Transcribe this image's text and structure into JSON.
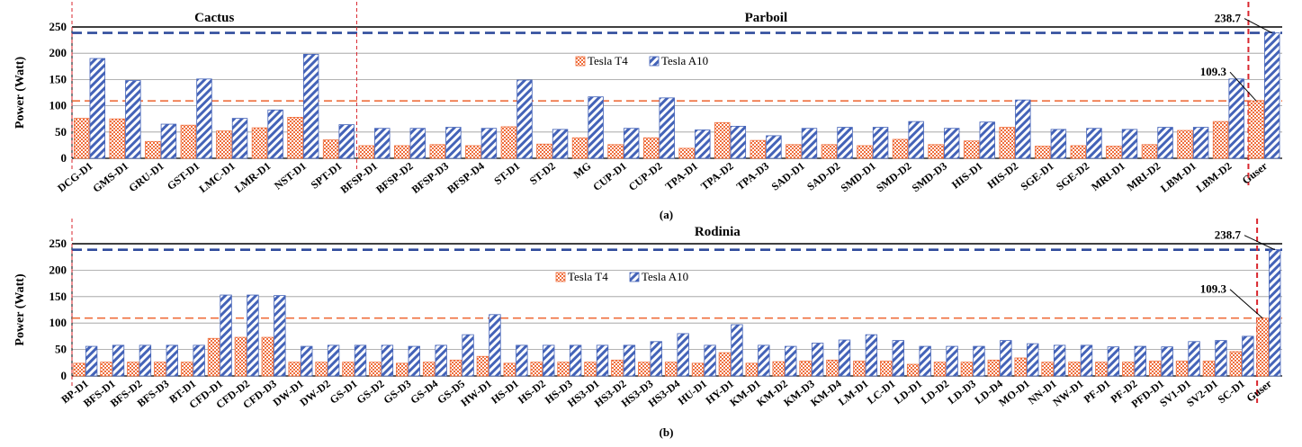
{
  "colors": {
    "t4": "#ef6e3c",
    "a10": "#4463b8",
    "t4_ref": "#ef6e3c",
    "a10_ref": "#2f4b9c",
    "separator": "#d9262e"
  },
  "chart_data": [
    {
      "type": "bar",
      "panel_label": "(a)",
      "ylabel": "Power (Watt)",
      "ylim": [
        0,
        250
      ],
      "yticks": [
        0,
        50,
        100,
        150,
        200,
        250
      ],
      "grid": true,
      "legend_placement": "top-center",
      "groups": [
        {
          "label": "Cactus",
          "start": 0,
          "end": 8
        },
        {
          "label": "Parboil",
          "start": 8,
          "end": 31
        }
      ],
      "categories": [
        "DCG-D1",
        "GMS-D1",
        "GRU-D1",
        "GST-D1",
        "LMC-D1",
        "LMR-D1",
        "NST-D1",
        "SPT-D1",
        "BFSP-D1",
        "BFSP-D2",
        "BFSP-D3",
        "BFSP-D4",
        "ST-D1",
        "ST-D2",
        "MG",
        "CUP-D1",
        "CUP-D2",
        "TPA-D1",
        "TPA-D2",
        "TPA-D3",
        "SAD-D1",
        "SAD-D2",
        "SMD-D1",
        "SMD-D2",
        "SMD-D3",
        "HIS-D1",
        "HIS-D2",
        "SGE-D1",
        "SGE-D2",
        "MRI-D1",
        "MRI-D2",
        "LBM-D1",
        "LBM-D2",
        "Guser"
      ],
      "series": [
        {
          "name": "Tesla T4",
          "values": [
            76,
            75,
            32,
            63,
            52,
            58,
            78,
            35,
            24,
            24,
            26,
            24,
            60,
            27,
            39,
            26,
            39,
            19,
            68,
            34,
            26,
            26,
            24,
            36,
            26,
            33,
            59,
            23,
            24,
            23,
            26,
            53,
            70,
            109.3
          ]
        },
        {
          "name": "Tesla A10",
          "values": [
            190,
            148,
            65,
            151,
            76,
            92,
            198,
            64,
            57,
            57,
            59,
            57,
            149,
            55,
            117,
            57,
            115,
            54,
            61,
            43,
            57,
            59,
            59,
            70,
            57,
            69,
            111,
            55,
            57,
            55,
            59,
            59,
            151,
            238.7
          ]
        }
      ],
      "reference_lines": [
        {
          "series": "Tesla A10",
          "value": 238.7,
          "label": "238.7"
        },
        {
          "series": "Tesla T4",
          "value": 109.3,
          "label": "109.3"
        }
      ]
    },
    {
      "type": "bar",
      "panel_label": "(b)",
      "ylabel": "Power (Watt)",
      "ylim": [
        0,
        250
      ],
      "yticks": [
        0,
        50,
        100,
        150,
        200,
        250
      ],
      "grid": true,
      "legend_placement": "top-center",
      "groups": [
        {
          "label": "Rodinia",
          "start": 0,
          "end": 48
        }
      ],
      "categories": [
        "BP-D1",
        "BFS-D1",
        "BFS-D2",
        "BFS-D3",
        "BT-D1",
        "CFD-D1",
        "CFD-D2",
        "CFD-D3",
        "DW-D1",
        "DW-D2",
        "GS-D1",
        "GS-D2",
        "GS-D3",
        "GS-D4",
        "GS-D5",
        "HW-D1",
        "HS-D1",
        "HS-D2",
        "HS-D3",
        "HS3-D1",
        "HS3-D2",
        "HS3-D3",
        "HS3-D4",
        "HU-D1",
        "HY-D1",
        "KM-D1",
        "KM-D2",
        "KM-D3",
        "KM-D4",
        "LM-D1",
        "LC-D1",
        "LD-D1",
        "LD-D2",
        "LD-D3",
        "LD-D4",
        "MO-D1",
        "NN-D1",
        "NW-D1",
        "PF-D1",
        "PF-D2",
        "PFD-D1",
        "SV1-D1",
        "SV2-D1",
        "SC-D1",
        "Guser"
      ],
      "series": [
        {
          "name": "Tesla T4",
          "values": [
            24,
            26,
            26,
            26,
            26,
            71,
            73,
            73,
            26,
            26,
            26,
            26,
            24,
            26,
            30,
            37,
            24,
            26,
            26,
            26,
            30,
            26,
            26,
            24,
            44,
            24,
            27,
            28,
            30,
            28,
            28,
            22,
            26,
            26,
            30,
            34,
            26,
            26,
            26,
            26,
            28,
            28,
            28,
            46,
            109.3
          ]
        },
        {
          "name": "Tesla A10",
          "values": [
            56,
            58,
            58,
            58,
            58,
            153,
            153,
            152,
            56,
            58,
            58,
            58,
            56,
            58,
            78,
            116,
            58,
            58,
            58,
            58,
            58,
            65,
            80,
            58,
            97,
            58,
            56,
            62,
            68,
            78,
            67,
            56,
            56,
            56,
            67,
            61,
            58,
            58,
            55,
            56,
            55,
            65,
            67,
            75,
            238.7
          ]
        }
      ],
      "reference_lines": [
        {
          "series": "Tesla A10",
          "value": 238.7,
          "label": "238.7"
        },
        {
          "series": "Tesla T4",
          "value": 109.3,
          "label": "109.3"
        }
      ]
    }
  ]
}
